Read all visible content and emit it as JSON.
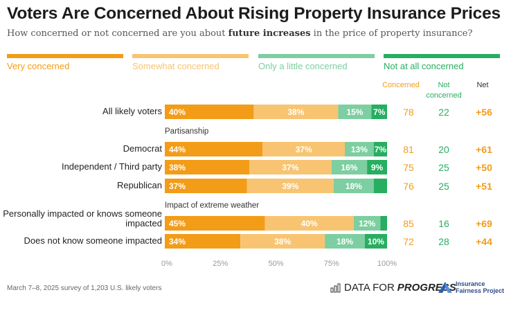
{
  "title": "Voters Are Concerned About Rising Property Insurance Prices",
  "subtitle_pre": "How concerned or not concerned are you about ",
  "subtitle_bold": "future increases",
  "subtitle_post": " in the price of property insurance?",
  "colors": {
    "very": "#F39C17",
    "somewhat": "#F8C471",
    "little": "#7DCEA0",
    "not_at_all": "#27AE60",
    "concerned_text": "#F39C17",
    "not_concerned_text": "#27AE60",
    "net_text": "#F39C17"
  },
  "legend": [
    {
      "label": "Very concerned",
      "color": "#F39C17"
    },
    {
      "label": "Somewhat concerned",
      "color": "#F8C471"
    },
    {
      "label": "Only a little concerned",
      "color": "#7DCEA0"
    },
    {
      "label": "Not at all concerned",
      "color": "#27AE60"
    }
  ],
  "columns": {
    "concerned": "Concerned",
    "not_concerned_line1": "Not",
    "not_concerned_line2": "concerned",
    "net": "Net"
  },
  "groups": {
    "partisanship": "Partisanship",
    "weather": "Impact of extreme weather"
  },
  "chart_data": {
    "type": "bar",
    "orientation": "horizontal-stacked",
    "title": "Voters Are Concerned About Rising Property Insurance Prices",
    "xlabel": "",
    "ylabel": "",
    "xlim": [
      0,
      100
    ],
    "x_ticks": [
      "0%",
      "25%",
      "50%",
      "75%",
      "100%"
    ],
    "legend_position": "top",
    "series_names": [
      "Very concerned",
      "Somewhat concerned",
      "Only a little concerned",
      "Not at all concerned"
    ],
    "rows": [
      {
        "label": "All likely voters",
        "label_line2": "",
        "group": "",
        "values": [
          40,
          38,
          15,
          7
        ],
        "labels": [
          "40%",
          "38%",
          "15%",
          "7%"
        ],
        "concerned": "78",
        "not_concerned": "22",
        "net": "+56"
      },
      {
        "label": "Democrat",
        "label_line2": "",
        "group": "Partisanship",
        "values": [
          44,
          37,
          13,
          7
        ],
        "labels": [
          "44%",
          "37%",
          "13%",
          "7%"
        ],
        "concerned": "81",
        "not_concerned": "20",
        "net": "+61"
      },
      {
        "label": "Independent / Third party",
        "label_line2": "",
        "group": "Partisanship",
        "values": [
          38,
          37,
          16,
          9
        ],
        "labels": [
          "38%",
          "37%",
          "16%",
          "9%"
        ],
        "concerned": "75",
        "not_concerned": "25",
        "net": "+50"
      },
      {
        "label": "Republican",
        "label_line2": "",
        "group": "Partisanship",
        "values": [
          37,
          39,
          18,
          6
        ],
        "labels": [
          "37%",
          "39%",
          "18%",
          ""
        ],
        "concerned": "76",
        "not_concerned": "25",
        "net": "+51"
      },
      {
        "label": "Personally impacted or knows someone",
        "label_line2": "impacted",
        "group": "Impact of extreme weather",
        "values": [
          45,
          40,
          12,
          4
        ],
        "labels": [
          "45%",
          "40%",
          "12%",
          ""
        ],
        "concerned": "85",
        "not_concerned": "16",
        "net": "+69"
      },
      {
        "label": "Does not know someone impacted",
        "label_line2": "",
        "group": "Impact of extreme weather",
        "values": [
          34,
          38,
          18,
          10
        ],
        "labels": [
          "34%",
          "38%",
          "18%",
          "10%"
        ],
        "concerned": "72",
        "not_concerned": "28",
        "net": "+44"
      }
    ]
  },
  "footnote": "March 7–8, 2025 survey of 1,203 U.S. likely voters",
  "logos": {
    "dfp_light": "DATA FOR",
    "dfp_bold": "PROGRESS",
    "ifp_line1": "Insurance",
    "ifp_line2": "Fairness Project"
  }
}
